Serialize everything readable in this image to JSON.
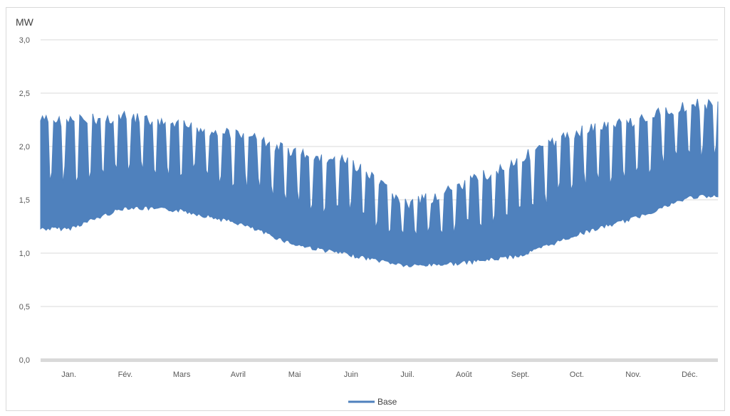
{
  "chart_data": {
    "type": "line",
    "title": "",
    "ylabel": "MW",
    "xlabel": "",
    "ylim": [
      0,
      3.0
    ],
    "yticks": [
      "0,0",
      "0,5",
      "1,0",
      "1,5",
      "2,0",
      "2,5",
      "3,0"
    ],
    "ytick_values": [
      0,
      0.5,
      1.0,
      1.5,
      2.0,
      2.5,
      3.0
    ],
    "categories": [
      "Jan.",
      "Fév.",
      "Mars",
      "Avril",
      "Mai",
      "Juin",
      "Juil.",
      "Août",
      "Sept.",
      "Oct.",
      "Nov.",
      "Déc."
    ],
    "grid": true,
    "legend_position": "bottom",
    "series": [
      {
        "name": "Base",
        "color": "#4f81bd",
        "monthly_min": [
          1.25,
          1.45,
          1.42,
          1.3,
          1.1,
          1.0,
          0.9,
          0.93,
          1.0,
          1.2,
          1.35,
          1.55
        ],
        "monthly_max": [
          2.3,
          2.33,
          2.25,
          2.18,
          2.0,
          1.9,
          1.5,
          1.7,
          1.95,
          2.2,
          2.3,
          2.45
        ]
      }
    ]
  }
}
